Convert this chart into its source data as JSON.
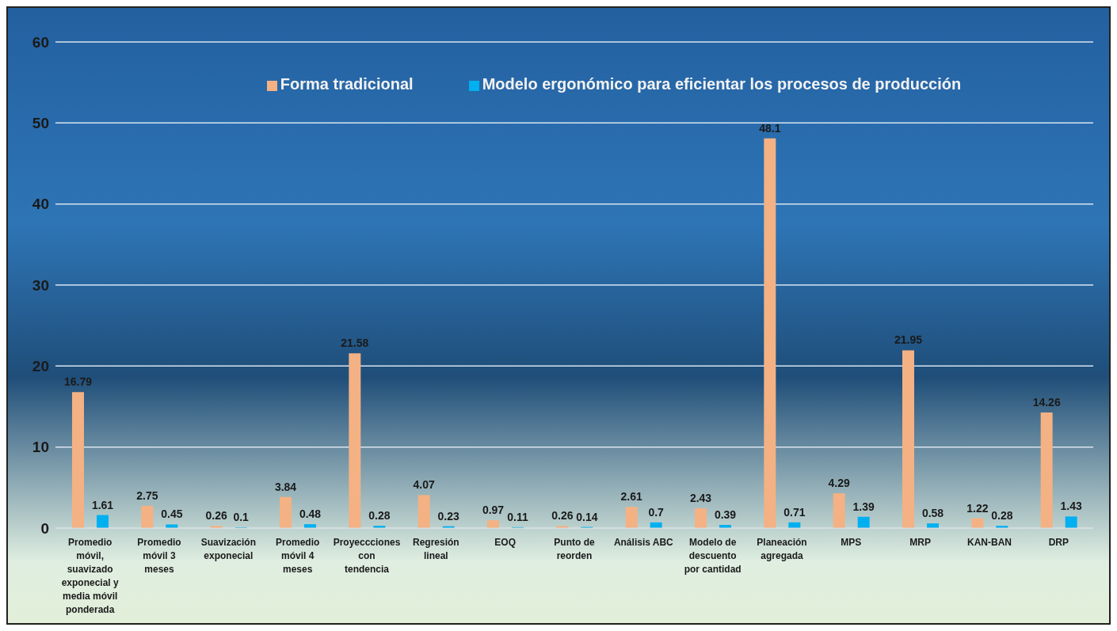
{
  "chart_data": {
    "type": "bar",
    "categories": [
      "Promedio móvil, suavizado exponecial y media móvil ponderada",
      "Promedio móvil 3 meses",
      "Suavización exponecial",
      "Promedio móvil 4 meses",
      "Proyeccciones con tendencia",
      "Regresión lineal",
      "EOQ",
      "Punto de reorden",
      "Análisis ABC",
      "Modelo de descuento por cantidad",
      "Planeación agregada",
      "MPS",
      "MRP",
      "KAN-BAN",
      "DRP"
    ],
    "series": [
      {
        "name": "Forma tradicional",
        "color": "#f4b183",
        "values": [
          16.79,
          2.75,
          0.26,
          3.84,
          21.58,
          4.07,
          0.97,
          0.26,
          2.61,
          2.43,
          48.1,
          4.29,
          21.95,
          1.22,
          14.26
        ]
      },
      {
        "name": "Modelo ergonómico para eficientar los procesos de producción",
        "color": "#00b0f0",
        "values": [
          1.61,
          0.45,
          0.1,
          0.48,
          0.28,
          0.23,
          0.11,
          0.14,
          0.7,
          0.39,
          0.71,
          1.39,
          0.58,
          0.28,
          1.43
        ]
      }
    ],
    "ylim": [
      0,
      60
    ],
    "yticks": [
      0,
      10,
      20,
      30,
      40,
      50,
      60
    ],
    "grid": "y",
    "legend": "top",
    "data_labels": true
  }
}
